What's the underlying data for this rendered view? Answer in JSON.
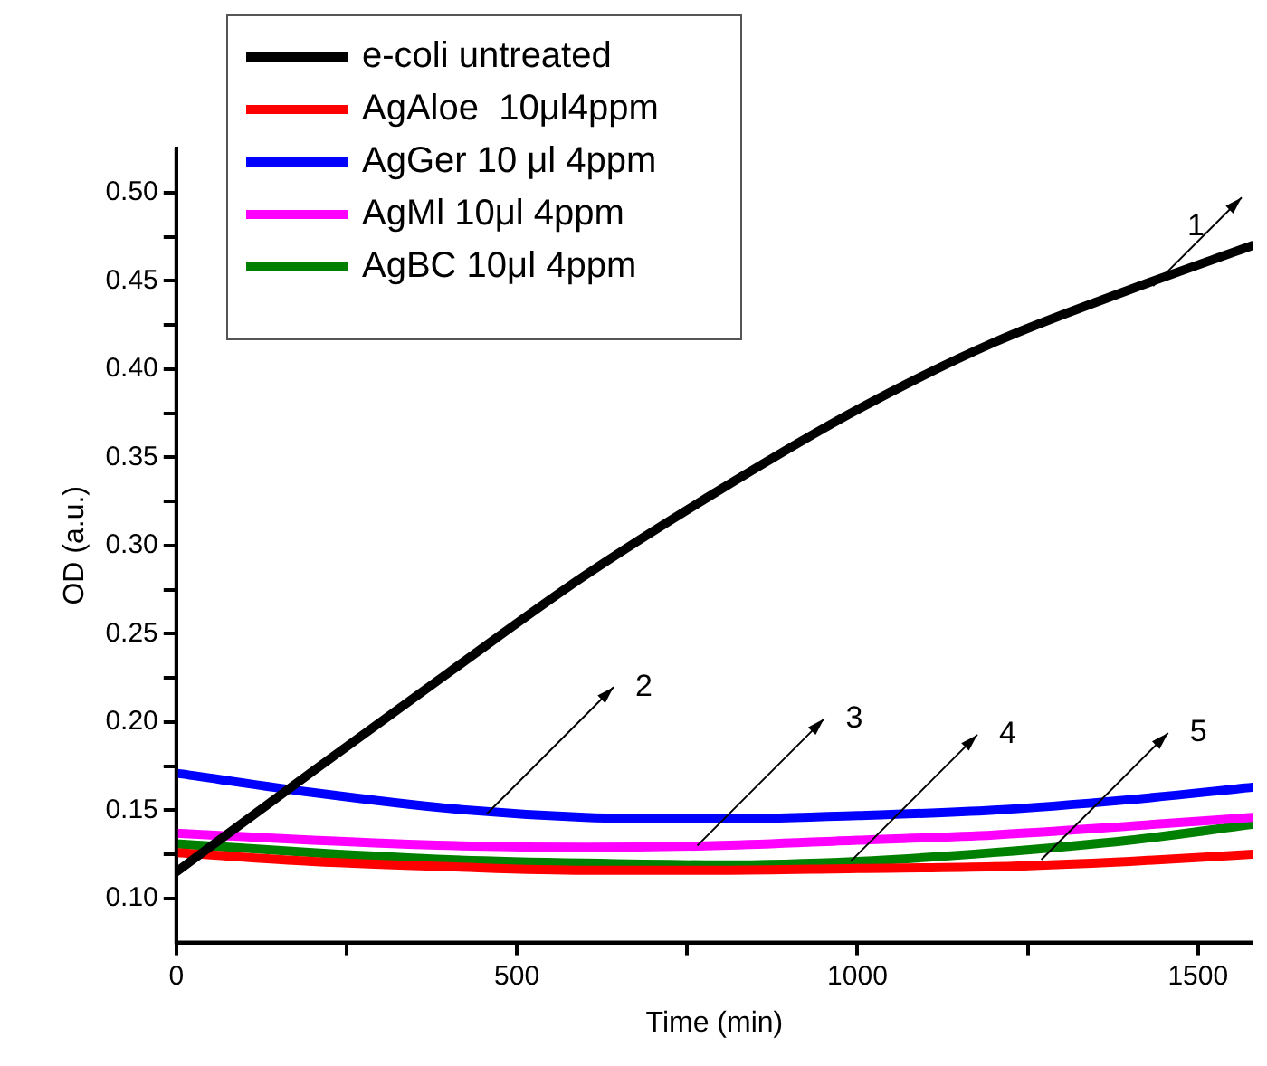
{
  "chart_data": {
    "type": "line",
    "xlabel": "Time (min)",
    "ylabel": "OD (a.u.)",
    "xlim": [
      0,
      1580
    ],
    "ylim": [
      0.075,
      0.525
    ],
    "xticks": [
      0,
      {
        "value": 250,
        "label": null
      },
      500,
      {
        "value": 750,
        "label": null
      },
      1000,
      {
        "value": 1250,
        "label": null
      },
      1500
    ],
    "yticks": [
      {
        "value": 0.1,
        "label": "0.10"
      },
      {
        "value": 0.125,
        "label": null
      },
      0.15,
      {
        "value": 0.175,
        "label": null
      },
      {
        "value": 0.2,
        "label": "0.20"
      },
      {
        "value": 0.225,
        "label": null
      },
      0.25,
      {
        "value": 0.275,
        "label": null
      },
      {
        "value": 0.3,
        "label": "0.30"
      },
      {
        "value": 0.325,
        "label": null
      },
      0.35,
      {
        "value": 0.375,
        "label": null
      },
      {
        "value": 0.4,
        "label": "0.40"
      },
      {
        "value": 0.425,
        "label": null
      },
      0.45,
      {
        "value": 0.475,
        "label": null
      },
      {
        "value": 0.5,
        "label": "0.50"
      }
    ],
    "grid": false,
    "legend": "top left",
    "marker": "none",
    "line_style": "solid",
    "x": [
      0,
      200,
      400,
      600,
      800,
      1000,
      1200,
      1400,
      1580
    ],
    "series": [
      {
        "name": "e-coli untreated",
        "color": "#000000",
        "values": [
          0.115,
          0.172,
          0.228,
          0.283,
          0.332,
          0.377,
          0.415,
          0.445,
          0.47
        ]
      },
      {
        "name": "AgAloe  10μl4ppm",
        "color": "#ff0000",
        "values": [
          0.126,
          0.121,
          0.118,
          0.116,
          0.116,
          0.117,
          0.118,
          0.121,
          0.125
        ]
      },
      {
        "name": "AgGer 10 μl 4ppm",
        "color": "#0000ff",
        "values": [
          0.171,
          0.16,
          0.151,
          0.146,
          0.145,
          0.147,
          0.15,
          0.156,
          0.163
        ]
      },
      {
        "name": "AgMl 10μl 4ppm",
        "color": "#ff00ff",
        "values": [
          0.137,
          0.133,
          0.13,
          0.129,
          0.13,
          0.133,
          0.136,
          0.141,
          0.146
        ]
      },
      {
        "name": "AgBC 10μl 4ppm",
        "color": "#008000",
        "values": [
          0.131,
          0.126,
          0.122,
          0.12,
          0.119,
          0.121,
          0.126,
          0.133,
          0.142
        ]
      }
    ],
    "annotations": [
      {
        "text": "1",
        "x": 1434,
        "y": 0.447
      },
      {
        "text": "2",
        "x": 456,
        "y": 0.148
      },
      {
        "text": "3",
        "x": 765,
        "y": 0.13
      },
      {
        "text": "4",
        "x": 990,
        "y": 0.121
      },
      {
        "text": "5",
        "x": 1270,
        "y": 0.122
      }
    ]
  }
}
